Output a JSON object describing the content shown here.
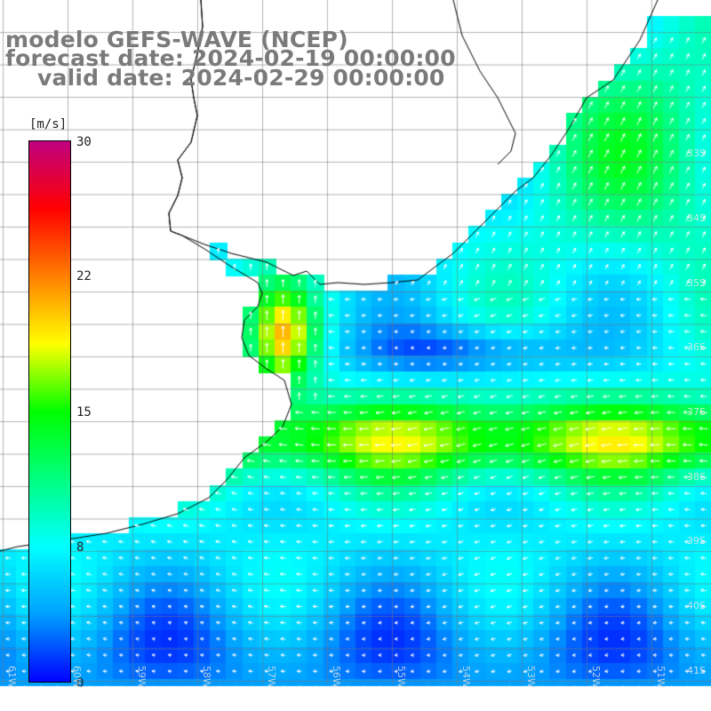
{
  "title": {
    "line1": "modelo GEFS-WAVE (NCEP)",
    "line2": "forecast date: 2024-02-19 00:00:00",
    "line3": "valid date: 2024-02-29 00:00:00"
  },
  "colorbar": {
    "unit": "[m/s]",
    "ticks": [
      "30",
      "22",
      "15",
      "8",
      "0"
    ],
    "tick_values": [
      30,
      22,
      15,
      8,
      0
    ],
    "vmin": 0,
    "vmax": 30,
    "colors": [
      "#0000ff",
      "#00a0ff",
      "#00ffff",
      "#00ff80",
      "#00ff00",
      "#ffff00",
      "#ff8000",
      "#ff0000",
      "#c00080"
    ]
  },
  "map": {
    "lat_labels": [
      "33S",
      "34S",
      "35S",
      "36S",
      "37S",
      "38S",
      "39S",
      "40S",
      "41S"
    ],
    "lon_labels": [
      "61W",
      "60W",
      "59W",
      "58W",
      "57W",
      "56W",
      "55W",
      "54W",
      "53W",
      "52W",
      "51W"
    ],
    "field": "wind speed (m/s) with direction arrows",
    "features": [
      "Rio de la Plata estuary",
      "Uruguay coast",
      "Buenos Aires coast",
      "South Atlantic"
    ]
  }
}
